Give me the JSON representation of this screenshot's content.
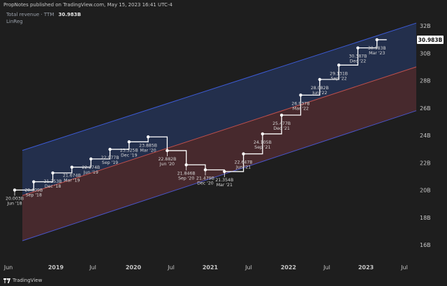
{
  "header": {
    "publish_line": "PropNotes published on TradingView.com, May 15, 2023 16:41 UTC-4",
    "series_label": "Total revenue · TTM",
    "series_value": "30.983B",
    "indicator_label": "LinReg"
  },
  "footer": {
    "brand": "TradingView"
  },
  "colors": {
    "background": "#1e1e1e",
    "line": "#ffffff",
    "upper_band_fill": "#24304f",
    "lower_band_fill": "#4a2a2e",
    "upper_band_line": "#3d5bd6",
    "mid_line": "#c0504d",
    "lower_band_line": "#4a55c8",
    "label_text": "#d8d8d8",
    "axis_text": "#c8c8c8"
  },
  "chart_data": {
    "type": "line",
    "title": "Total revenue · TTM",
    "ylabel": "",
    "xlabel": "",
    "ylim": [
      16,
      32
    ],
    "y_ticks": [
      "16B",
      "18B",
      "20B",
      "22B",
      "24B",
      "26B",
      "28B",
      "30B",
      "32B"
    ],
    "x_ticks": [
      "Jun",
      "2019",
      "Jul",
      "2020",
      "Jul",
      "2021",
      "Jul",
      "2022",
      "Jul",
      "2023",
      "Jul"
    ],
    "last_value_label": "30.983B",
    "series": [
      {
        "name": "Total revenue · TTM",
        "points": [
          {
            "label": "Jun '18",
            "value_label": "20.003B",
            "value": 20.003
          },
          {
            "label": "Sep '18",
            "value_label": "20.609B",
            "value": 20.609
          },
          {
            "label": "Dec '18",
            "value_label": "21.253B",
            "value": 21.253
          },
          {
            "label": "Mar '19",
            "value_label": "21.674B",
            "value": 21.674
          },
          {
            "label": "Jun '19",
            "value_label": "22.274B",
            "value": 22.274
          },
          {
            "label": "Sep '19",
            "value_label": "22.977B",
            "value": 22.977
          },
          {
            "label": "Dec '19",
            "value_label": "23.525B",
            "value": 23.525
          },
          {
            "label": "Mar '20",
            "value_label": "23.885B",
            "value": 23.885
          },
          {
            "label": "Jun '20",
            "value_label": "22.882B",
            "value": 22.882
          },
          {
            "label": "Sep '20",
            "value_label": "21.846B",
            "value": 21.846
          },
          {
            "label": "Dec '20",
            "value_label": "21.479B",
            "value": 21.479
          },
          {
            "label": "Mar '21",
            "value_label": "21.354B",
            "value": 21.354
          },
          {
            "label": "Jun '21",
            "value_label": "22.647B",
            "value": 22.647
          },
          {
            "label": "Sep '21",
            "value_label": "24.105B",
            "value": 24.105
          },
          {
            "label": "Dec '21",
            "value_label": "25.477B",
            "value": 25.477
          },
          {
            "label": "Mar '22",
            "value_label": "26.937B",
            "value": 26.937
          },
          {
            "label": "Jun '22",
            "value_label": "28.082B",
            "value": 28.082
          },
          {
            "label": "Sep '22",
            "value_label": "29.131B",
            "value": 29.131
          },
          {
            "label": "Dec '22",
            "value_label": "30.387B",
            "value": 30.387
          },
          {
            "label": "Mar '23",
            "value_label": "30.983B",
            "value": 30.983
          }
        ]
      }
    ],
    "regression_channel": {
      "name": "LinReg",
      "start": {
        "label": "Jun '18",
        "upper": 22.9,
        "mid": 19.6,
        "lower": 16.3
      },
      "end": {
        "label": "Jul '23",
        "upper": 32.2,
        "mid": 29.0,
        "lower": 25.8
      }
    }
  }
}
